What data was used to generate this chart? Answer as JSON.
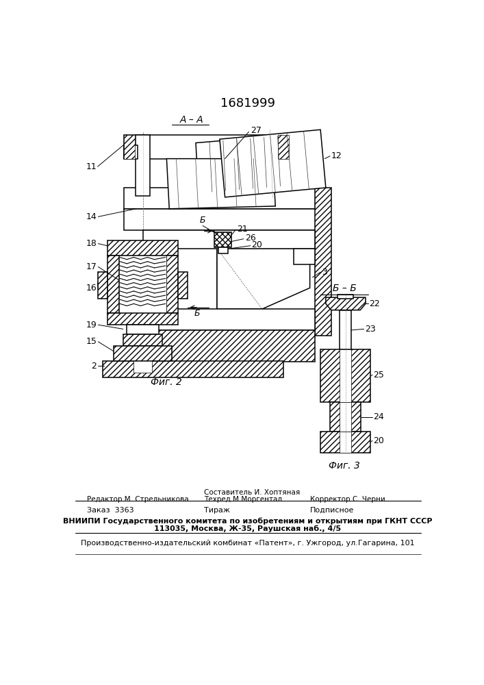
{
  "patent_number": "1681999",
  "bg": "#ffffff",
  "fw": 7.07,
  "fh": 10.0,
  "dpi": 100,
  "footer_sestavitel": "Составитель И. Хоптяная",
  "footer_redaktor": "Редактор М. Стрельникова",
  "footer_tehred": "Техред М.Моргентал",
  "footer_korrektor": "Корректор С. Черни",
  "footer_order": "Заказ  3363",
  "footer_tirazh": "Тираж",
  "footer_podpisnoe": "Подписное",
  "footer_vniipI": "ВНИИПИ Государственного комитета по изобретениям и открытиям при ГКНТ СССР",
  "footer_address": "113035, Москва, Ж-35, Раушская наб., 4/5",
  "footer_production": "Производственно-издательский комбинат «Патент», г. Ужгород, ул.Гагарина, 101",
  "cap_fig2": "Фиг. 2",
  "cap_fig3": "Фиг. 3",
  "lbl_AA": "A – A",
  "lbl_BB": "Б – Б",
  "lbl_B": "Б"
}
